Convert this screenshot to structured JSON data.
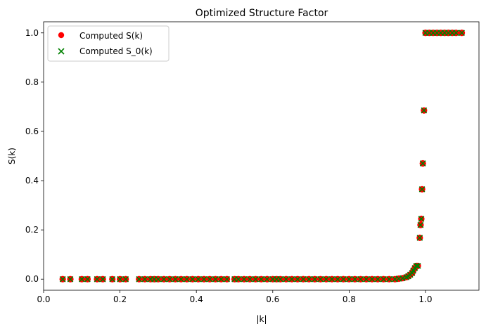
{
  "chart_data": {
    "type": "scatter",
    "title": "Optimized Structure Factor",
    "xlabel": "|k|",
    "ylabel": "S(k)",
    "xlim": [
      0.0,
      1.14
    ],
    "ylim": [
      -0.045,
      1.045
    ],
    "xticks": [
      0.0,
      0.2,
      0.4,
      0.6,
      0.8,
      1.0
    ],
    "xtick_labels": [
      "0.0",
      "0.2",
      "0.4",
      "0.6",
      "0.8",
      "1.0"
    ],
    "yticks": [
      0.0,
      0.2,
      0.4,
      0.6,
      0.8,
      1.0
    ],
    "ytick_labels": [
      "0.0",
      "0.2",
      "0.4",
      "0.6",
      "0.8",
      "1.0"
    ],
    "grid": false,
    "legend_position": "top-left",
    "series": [
      {
        "name": "Computed S(k)",
        "marker": "circle",
        "color": "#ff0000",
        "x": [
          0.05,
          0.07,
          0.1,
          0.115,
          0.14,
          0.155,
          0.18,
          0.2,
          0.215,
          0.25,
          0.265,
          0.28,
          0.29,
          0.3,
          0.315,
          0.33,
          0.345,
          0.36,
          0.375,
          0.39,
          0.405,
          0.42,
          0.435,
          0.45,
          0.465,
          0.48,
          0.5,
          0.51,
          0.525,
          0.54,
          0.555,
          0.57,
          0.585,
          0.6,
          0.61,
          0.62,
          0.635,
          0.65,
          0.665,
          0.68,
          0.695,
          0.71,
          0.725,
          0.74,
          0.755,
          0.77,
          0.785,
          0.8,
          0.815,
          0.83,
          0.845,
          0.86,
          0.875,
          0.89,
          0.905,
          0.92,
          0.93,
          0.94,
          0.95,
          0.955,
          0.96,
          0.965,
          0.968,
          0.972,
          0.976,
          0.98,
          0.985,
          0.987,
          0.989,
          0.991,
          0.993,
          0.996,
          1.0,
          1.01,
          1.02,
          1.03,
          1.04,
          1.05,
          1.06,
          1.07,
          1.08,
          1.095
        ],
        "y": [
          0.0,
          0.0,
          0.0,
          0.0,
          0.0,
          0.0,
          0.0,
          0.0,
          0.0,
          0.0,
          0.0,
          0.0,
          0.0,
          0.0,
          0.0,
          0.0,
          0.0,
          0.0,
          0.0,
          0.0,
          0.0,
          0.0,
          0.0,
          0.0,
          0.0,
          0.0,
          0.0,
          0.0,
          0.0,
          0.0,
          0.0,
          0.0,
          0.0,
          0.0,
          0.0,
          0.0,
          0.0,
          0.0,
          0.0,
          0.0,
          0.0,
          0.0,
          0.0,
          0.0,
          0.0,
          0.0,
          0.0,
          0.0,
          0.0,
          0.0,
          0.0,
          0.0,
          0.0,
          0.0,
          0.0,
          0.0,
          0.002,
          0.004,
          0.008,
          0.012,
          0.018,
          0.025,
          0.035,
          0.045,
          0.054,
          0.054,
          0.168,
          0.22,
          0.245,
          0.365,
          0.47,
          0.685,
          1.0,
          1.0,
          1.0,
          1.0,
          1.0,
          1.0,
          1.0,
          1.0,
          1.0,
          1.0
        ]
      },
      {
        "name": "Computed S_0(k)",
        "marker": "x",
        "color": "#008000",
        "x": [
          0.05,
          0.07,
          0.1,
          0.115,
          0.14,
          0.155,
          0.18,
          0.2,
          0.215,
          0.25,
          0.265,
          0.28,
          0.29,
          0.3,
          0.315,
          0.33,
          0.345,
          0.36,
          0.375,
          0.39,
          0.405,
          0.42,
          0.435,
          0.45,
          0.465,
          0.48,
          0.5,
          0.51,
          0.525,
          0.54,
          0.555,
          0.57,
          0.585,
          0.6,
          0.61,
          0.62,
          0.635,
          0.65,
          0.665,
          0.68,
          0.695,
          0.71,
          0.725,
          0.74,
          0.755,
          0.77,
          0.785,
          0.8,
          0.815,
          0.83,
          0.845,
          0.86,
          0.875,
          0.89,
          0.905,
          0.92,
          0.93,
          0.94,
          0.95,
          0.955,
          0.96,
          0.965,
          0.968,
          0.972,
          0.976,
          0.98,
          0.985,
          0.987,
          0.989,
          0.991,
          0.993,
          0.996,
          1.0,
          1.01,
          1.02,
          1.03,
          1.04,
          1.05,
          1.06,
          1.07,
          1.08,
          1.095
        ],
        "y": [
          0.0,
          0.0,
          0.0,
          0.0,
          0.0,
          0.0,
          0.0,
          0.0,
          0.0,
          0.0,
          0.0,
          0.0,
          0.0,
          0.0,
          0.0,
          0.0,
          0.0,
          0.0,
          0.0,
          0.0,
          0.0,
          0.0,
          0.0,
          0.0,
          0.0,
          0.0,
          0.0,
          0.0,
          0.0,
          0.0,
          0.0,
          0.0,
          0.0,
          0.0,
          0.0,
          0.0,
          0.0,
          0.0,
          0.0,
          0.0,
          0.0,
          0.0,
          0.0,
          0.0,
          0.0,
          0.0,
          0.0,
          0.0,
          0.0,
          0.0,
          0.0,
          0.0,
          0.0,
          0.0,
          0.0,
          0.0,
          0.002,
          0.004,
          0.008,
          0.012,
          0.018,
          0.025,
          0.035,
          0.045,
          0.054,
          0.054,
          0.168,
          0.22,
          0.245,
          0.365,
          0.47,
          0.685,
          1.0,
          1.0,
          1.0,
          1.0,
          1.0,
          1.0,
          1.0,
          1.0,
          1.0,
          1.0
        ]
      }
    ]
  }
}
